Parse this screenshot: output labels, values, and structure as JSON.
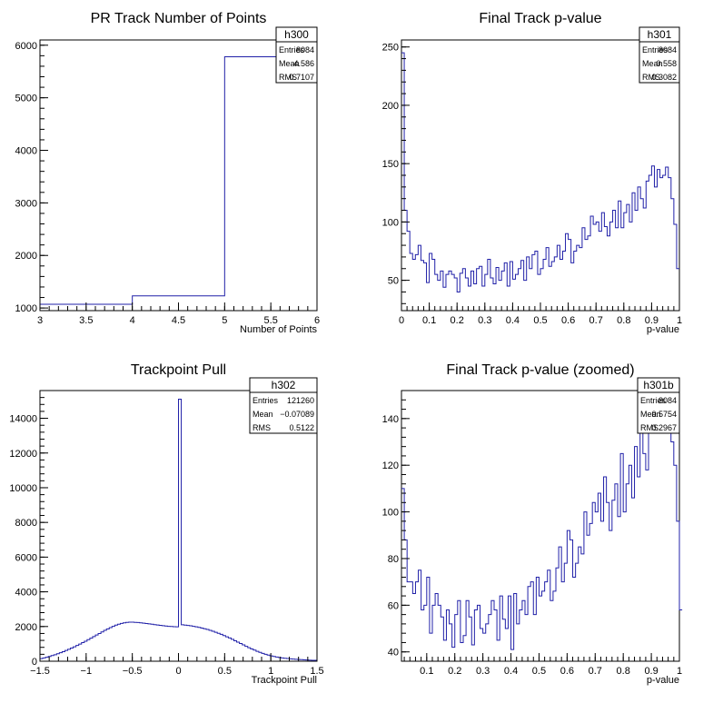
{
  "chart_data": [
    {
      "type": "histogram",
      "title": "PR Track Number of Points",
      "xlabel": "Number of Points",
      "ylabel": "",
      "xlim": [
        3,
        6
      ],
      "ylim": [
        950,
        6100
      ],
      "xticks": [
        3,
        3.5,
        4,
        4.5,
        5,
        5.5,
        6
      ],
      "xtick_labels": [
        "3",
        "3.5",
        "4",
        "4.5",
        "5",
        "5.5",
        "6"
      ],
      "yticks": [
        1000,
        2000,
        3000,
        4000,
        5000,
        6000
      ],
      "ytick_labels": [
        "1000",
        "2000",
        "3000",
        "4000",
        "5000",
        "6000"
      ],
      "bins": [
        {
          "x0": 3,
          "x1": 4,
          "value": 1070
        },
        {
          "x0": 4,
          "x1": 5,
          "value": 1230
        },
        {
          "x0": 5,
          "x1": 6,
          "value": 5780
        }
      ],
      "stats": {
        "name": "h300",
        "rows": [
          [
            "Entries",
            "8084"
          ],
          [
            "Mean",
            "4.586"
          ],
          [
            "RMS",
            "0.7107"
          ]
        ]
      }
    },
    {
      "type": "histogram",
      "title": "Final Track p-value",
      "xlabel": "p-value",
      "ylabel": "",
      "xlim": [
        0,
        1
      ],
      "ylim": [
        24,
        256
      ],
      "xticks": [
        0,
        0.1,
        0.2,
        0.3,
        0.4,
        0.5,
        0.6,
        0.7,
        0.8,
        0.9,
        1
      ],
      "xtick_labels": [
        "0",
        "0.1",
        "0.2",
        "0.3",
        "0.4",
        "0.5",
        "0.6",
        "0.7",
        "0.8",
        "0.9",
        "1"
      ],
      "yticks": [
        50,
        100,
        150,
        200,
        250
      ],
      "ytick_labels": [
        "50",
        "100",
        "150",
        "200",
        "250"
      ],
      "bin_start": 0,
      "bin_width": 0.01,
      "values": [
        245,
        110,
        92,
        73,
        68,
        72,
        80,
        67,
        65,
        48,
        73,
        68,
        55,
        50,
        58,
        44,
        55,
        58,
        55,
        52,
        40,
        56,
        60,
        52,
        45,
        58,
        47,
        60,
        62,
        45,
        55,
        68,
        52,
        47,
        61,
        50,
        58,
        65,
        45,
        66,
        51,
        55,
        60,
        67,
        50,
        70,
        60,
        72,
        75,
        55,
        60,
        68,
        78,
        62,
        66,
        70,
        80,
        68,
        75,
        90,
        85,
        65,
        75,
        80,
        78,
        95,
        85,
        88,
        105,
        98,
        100,
        92,
        108,
        96,
        88,
        100,
        110,
        95,
        118,
        95,
        108,
        115,
        100,
        125,
        110,
        130,
        120,
        112,
        135,
        140,
        148,
        130,
        145,
        138,
        140,
        147,
        138,
        120,
        98,
        60
      ],
      "stats": {
        "name": "h301",
        "rows": [
          [
            "Entries",
            "8084"
          ],
          [
            "Mean",
            "0.558"
          ],
          [
            "RMS",
            "0.3082"
          ]
        ]
      }
    },
    {
      "type": "histogram",
      "title": "Trackpoint Pull",
      "xlabel": "Trackpoint Pull",
      "ylabel": "",
      "xlim": [
        -1.5,
        1.5
      ],
      "ylim": [
        0,
        15600
      ],
      "xticks": [
        -1.5,
        -1,
        -0.5,
        0,
        0.5,
        1,
        1.5
      ],
      "xtick_labels": [
        "−1.5",
        "−1",
        "−0.5",
        "0",
        "0.5",
        "1",
        "1.5"
      ],
      "yticks": [
        0,
        2000,
        4000,
        6000,
        8000,
        10000,
        12000,
        14000
      ],
      "ytick_labels": [
        "0",
        "2000",
        "4000",
        "6000",
        "8000",
        "10000",
        "12000",
        "14000"
      ],
      "bin_start": -1.5,
      "bin_width": 0.03,
      "values": [
        150,
        190,
        230,
        275,
        325,
        375,
        430,
        490,
        550,
        620,
        690,
        760,
        830,
        910,
        990,
        1070,
        1150,
        1240,
        1330,
        1420,
        1510,
        1600,
        1690,
        1780,
        1860,
        1940,
        2010,
        2080,
        2130,
        2180,
        2210,
        2240,
        2250,
        2250,
        2240,
        2230,
        2210,
        2190,
        2170,
        2150,
        2130,
        2110,
        2090,
        2070,
        2050,
        2030,
        2010,
        2000,
        1990,
        1980,
        15100,
        2100,
        2080,
        2060,
        2040,
        2010,
        1980,
        1950,
        1910,
        1870,
        1830,
        1780,
        1730,
        1670,
        1610,
        1550,
        1480,
        1410,
        1340,
        1260,
        1180,
        1100,
        1020,
        940,
        860,
        780,
        710,
        640,
        570,
        510,
        450,
        400,
        350,
        310,
        275,
        245,
        215,
        190,
        170,
        155,
        140,
        125,
        110,
        100,
        90,
        80,
        70,
        60,
        55,
        50
      ],
      "stats": {
        "name": "h302",
        "rows": [
          [
            "Entries",
            "121260"
          ],
          [
            "Mean",
            "−0.07089"
          ],
          [
            "RMS",
            "0.5122"
          ]
        ]
      }
    },
    {
      "type": "histogram",
      "title": "Final Track p-value (zoomed)",
      "xlabel": "p-value",
      "ylabel": "",
      "xlim": [
        0.01,
        1
      ],
      "ylim": [
        36,
        152
      ],
      "xticks": [
        0.1,
        0.2,
        0.3,
        0.4,
        0.5,
        0.6,
        0.7,
        0.8,
        0.9,
        1
      ],
      "xtick_labels": [
        "0.1",
        "0.2",
        "0.3",
        "0.4",
        "0.5",
        "0.6",
        "0.7",
        "0.8",
        "0.9",
        "1"
      ],
      "yticks": [
        40,
        60,
        80,
        100,
        120,
        140
      ],
      "ytick_labels": [
        "40",
        "60",
        "80",
        "100",
        "120",
        "140"
      ],
      "bin_start": 0.01,
      "bin_width": 0.01,
      "values": [
        110,
        88,
        70,
        70,
        65,
        70,
        75,
        58,
        60,
        72,
        48,
        60,
        65,
        60,
        55,
        45,
        58,
        52,
        42,
        56,
        62,
        44,
        47,
        62,
        55,
        43,
        58,
        60,
        50,
        48,
        52,
        56,
        62,
        58,
        45,
        64,
        54,
        50,
        64,
        41,
        65,
        52,
        58,
        62,
        56,
        68,
        70,
        56,
        72,
        64,
        66,
        70,
        75,
        62,
        66,
        76,
        85,
        70,
        78,
        92,
        88,
        72,
        78,
        85,
        82,
        100,
        90,
        95,
        104,
        100,
        108,
        96,
        115,
        104,
        92,
        105,
        112,
        98,
        125,
        100,
        112,
        120,
        106,
        128,
        115,
        135,
        125,
        118,
        140,
        145,
        150,
        135,
        148,
        142,
        144,
        150,
        130,
        120,
        96,
        58
      ],
      "stats": {
        "name": "h301b",
        "rows": [
          [
            "Entries",
            "8084"
          ],
          [
            "Mean",
            "0.5754"
          ],
          [
            "RMS",
            "0.2967"
          ]
        ]
      }
    }
  ]
}
